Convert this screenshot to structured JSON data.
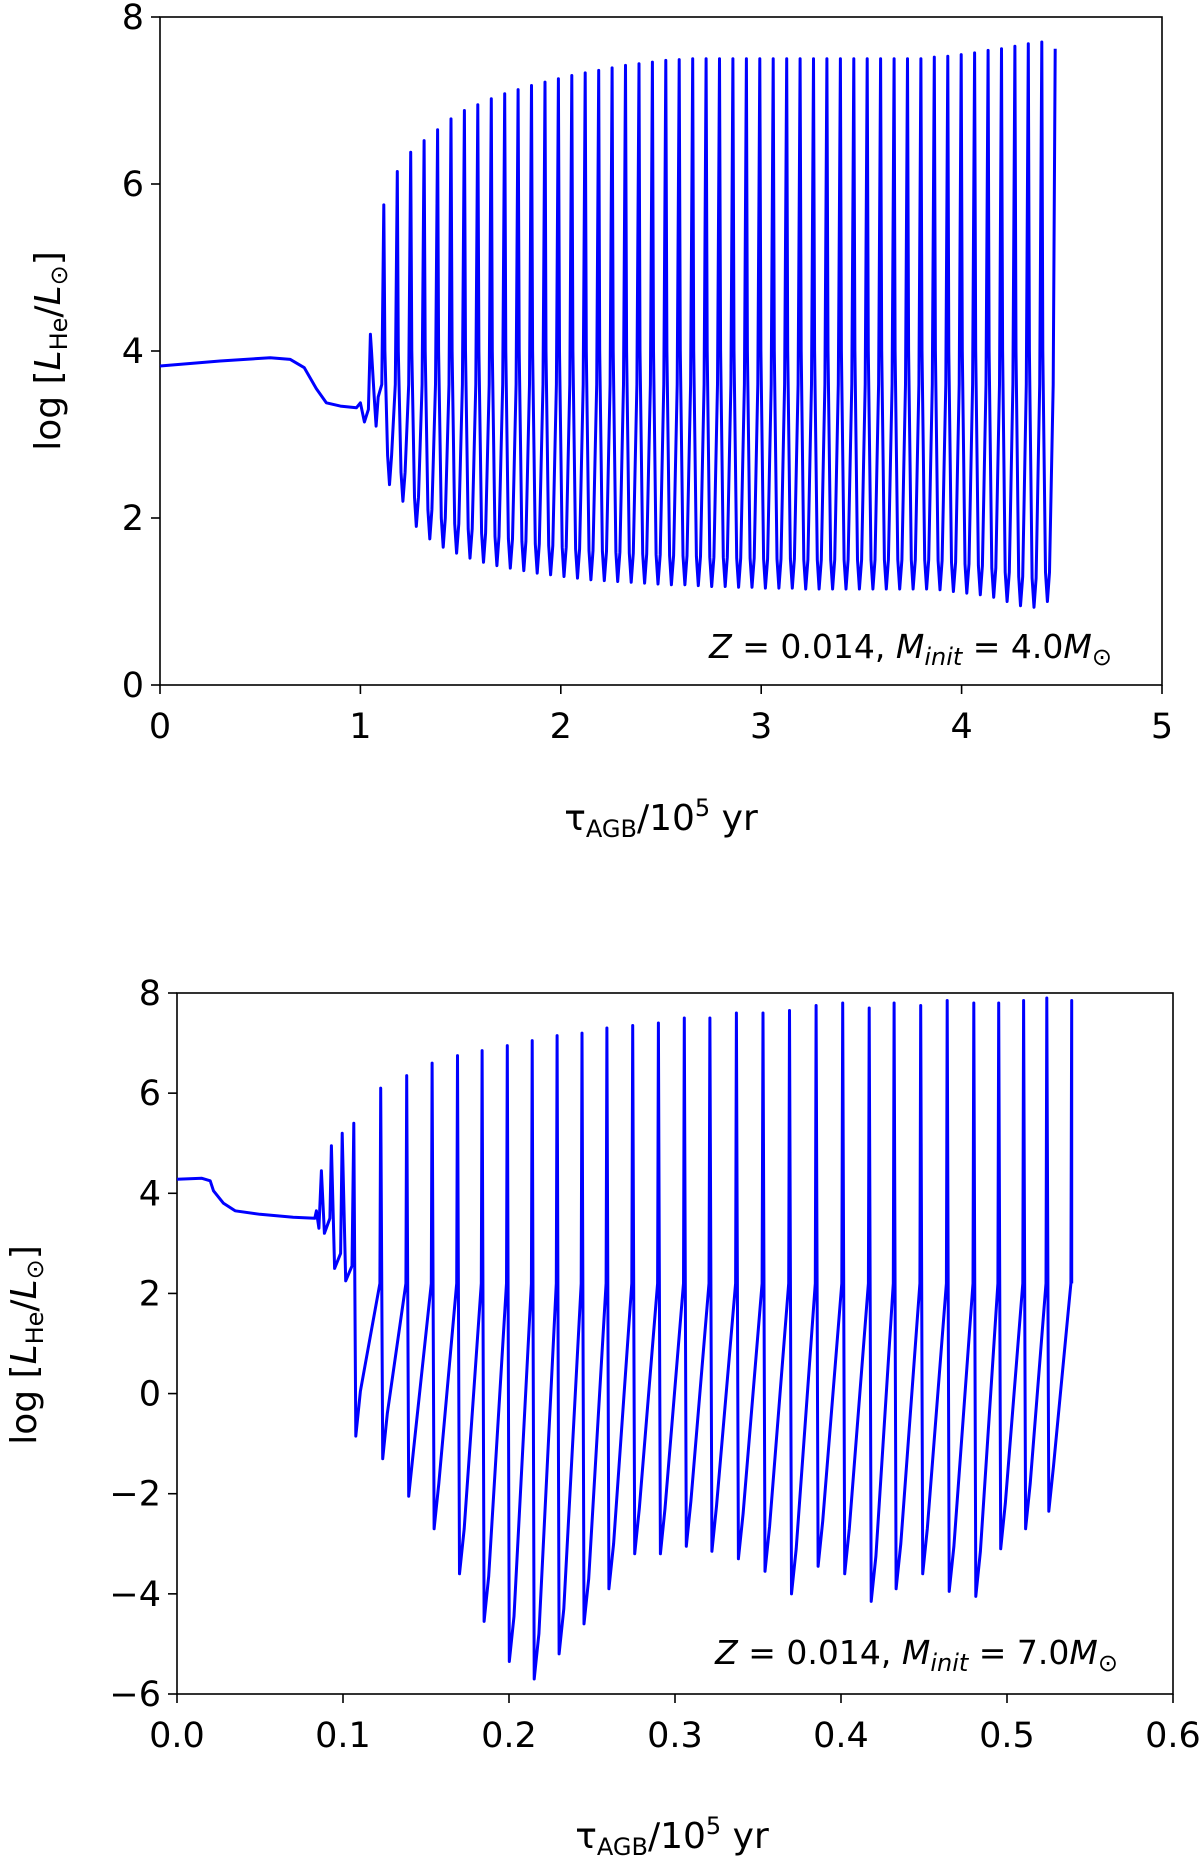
{
  "colors": {
    "line": "#0000ff",
    "axes": "#000000"
  },
  "chart_data": [
    {
      "type": "line",
      "title": "",
      "xlabel": {
        "tau": "τ",
        "sub": "AGB",
        "mid": "/10",
        "sup": "5",
        "unit": " yr"
      },
      "ylabel": {
        "prefix": "log  [",
        "l1": "L",
        "sub1": "He",
        "slash": "/",
        "l2": "L",
        "sub2": "⊙",
        "suffix": "]"
      },
      "annotation": {
        "z": "Z",
        "eq1": " = 0.014, ",
        "m": "M",
        "msub": "init",
        "eq2": " = 4.0",
        "m2": "M",
        "sun": "⊙"
      },
      "xlim": [
        0,
        5
      ],
      "ylim": [
        0,
        8
      ],
      "xticks": [
        "0",
        "1",
        "2",
        "3",
        "4",
        "5"
      ],
      "yticks": [
        "0",
        "2",
        "4",
        "6",
        "8"
      ],
      "grid": false,
      "series": [
        {
          "name": "log L_He",
          "pre_pulse": [
            [
              0,
              3.82
            ],
            [
              0.3,
              3.88
            ],
            [
              0.55,
              3.92
            ],
            [
              0.65,
              3.9
            ],
            [
              0.72,
              3.8
            ],
            [
              0.78,
              3.55
            ],
            [
              0.83,
              3.38
            ],
            [
              0.9,
              3.34
            ],
            [
              0.98,
              3.32
            ],
            [
              1.0,
              3.38
            ],
            [
              1.02,
              3.15
            ],
            [
              1.04,
              3.3
            ]
          ],
          "pulse_start": 1.05,
          "pulse_period": 0.067,
          "pulse_peaks": [
            4.2,
            5.75,
            6.15,
            6.38,
            6.52,
            6.65,
            6.78,
            6.88,
            6.95,
            7.02,
            7.08,
            7.13,
            7.18,
            7.22,
            7.26,
            7.3,
            7.33,
            7.36,
            7.39,
            7.42,
            7.44,
            7.46,
            7.48,
            7.49,
            7.5,
            7.5,
            7.5,
            7.5,
            7.5,
            7.5,
            7.5,
            7.5,
            7.5,
            7.5,
            7.5,
            7.5,
            7.5,
            7.5,
            7.5,
            7.5,
            7.5,
            7.5,
            7.52,
            7.53,
            7.55,
            7.57,
            7.6,
            7.62,
            7.65,
            7.68,
            7.7,
            7.62
          ],
          "interpulse_minima": [
            3.1,
            2.4,
            2.2,
            1.9,
            1.75,
            1.65,
            1.58,
            1.52,
            1.47,
            1.43,
            1.4,
            1.37,
            1.34,
            1.32,
            1.3,
            1.28,
            1.26,
            1.25,
            1.24,
            1.23,
            1.22,
            1.21,
            1.2,
            1.2,
            1.19,
            1.18,
            1.18,
            1.17,
            1.17,
            1.16,
            1.16,
            1.16,
            1.15,
            1.15,
            1.15,
            1.15,
            1.15,
            1.15,
            1.15,
            1.15,
            1.15,
            1.15,
            1.14,
            1.12,
            1.1,
            1.08,
            1.05,
            1.0,
            0.95,
            0.93,
            1.0
          ]
        }
      ]
    },
    {
      "type": "line",
      "title": "",
      "xlabel": {
        "tau": "τ",
        "sub": "AGB",
        "mid": "/10",
        "sup": "5",
        "unit": " yr"
      },
      "ylabel": {
        "prefix": "log  [",
        "l1": "L",
        "sub1": "He",
        "slash": "/",
        "l2": "L",
        "sub2": "⊙",
        "suffix": "]"
      },
      "annotation": {
        "z": "Z",
        "eq1": " = 0.014, ",
        "m": "M",
        "msub": "init",
        "eq2": " = 7.0",
        "m2": "M",
        "sun": "⊙"
      },
      "xlim": [
        0,
        0.6
      ],
      "ylim": [
        -6,
        8
      ],
      "xticks": [
        "0.0",
        "0.1",
        "0.2",
        "0.3",
        "0.4",
        "0.5",
        "0.6"
      ],
      "yticks": [
        "−6",
        "−4",
        "−2",
        "0",
        "2",
        "4",
        "6",
        "8"
      ],
      "grid": false,
      "series": [
        {
          "name": "log L_He",
          "pre_pulse": [
            [
              0,
              4.28
            ],
            [
              0.015,
              4.3
            ],
            [
              0.02,
              4.25
            ],
            [
              0.022,
              4.05
            ],
            [
              0.028,
              3.8
            ],
            [
              0.035,
              3.65
            ],
            [
              0.05,
              3.58
            ],
            [
              0.07,
              3.52
            ],
            [
              0.083,
              3.5
            ],
            [
              0.084,
              3.65
            ],
            [
              0.0855,
              3.3
            ]
          ],
          "pulse_x": [
            0.087,
            0.093,
            0.0995,
            0.1065,
            0.1227,
            0.1384,
            0.1537,
            0.169,
            0.1838,
            0.199,
            0.214,
            0.229,
            0.244,
            0.259,
            0.2745,
            0.29,
            0.3056,
            0.321,
            0.337,
            0.353,
            0.369,
            0.385,
            0.401,
            0.417,
            0.432,
            0.448,
            0.464,
            0.48,
            0.495,
            0.51,
            0.524,
            0.539
          ],
          "pulse_peaks": [
            4.45,
            4.95,
            5.2,
            5.4,
            6.1,
            6.35,
            6.6,
            6.75,
            6.85,
            6.95,
            7.05,
            7.15,
            7.2,
            7.3,
            7.35,
            7.4,
            7.5,
            7.5,
            7.6,
            7.6,
            7.65,
            7.75,
            7.8,
            7.7,
            7.8,
            7.75,
            7.85,
            7.8,
            7.8,
            7.85,
            7.9,
            7.85
          ],
          "interpulse_minima": [
            3.2,
            2.5,
            2.25,
            -0.85,
            -1.3,
            -2.05,
            -2.7,
            -3.6,
            -4.55,
            -5.35,
            -5.7,
            -5.2,
            -4.6,
            -3.9,
            -3.2,
            -3.2,
            -3.05,
            -3.15,
            -3.3,
            -3.55,
            -4.0,
            -3.45,
            -3.6,
            -4.15,
            -3.9,
            -3.6,
            -3.95,
            -4.05,
            -3.1,
            -2.7,
            -2.35
          ],
          "pre_spike_level": 2.2
        }
      ]
    }
  ]
}
